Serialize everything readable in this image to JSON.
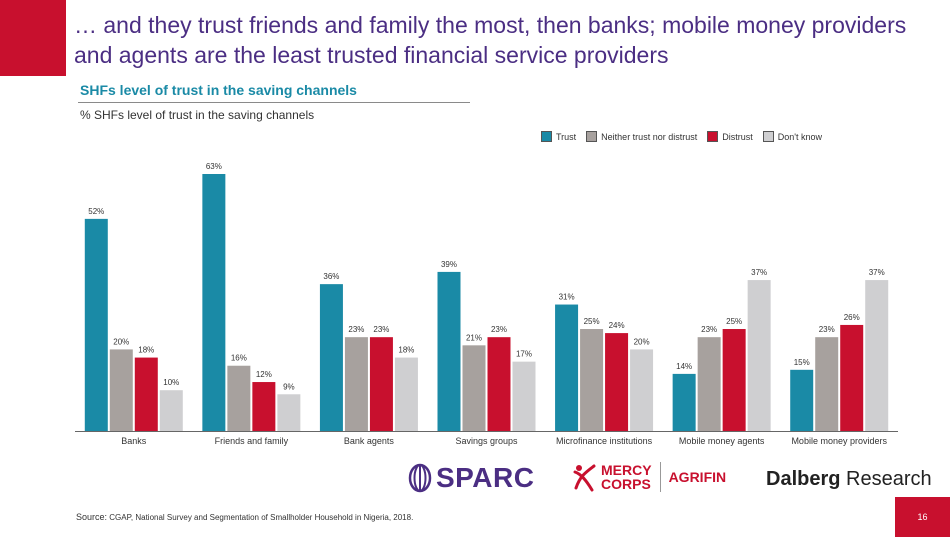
{
  "headline": "… and they trust friends and family the most, then banks; mobile money providers and agents are the least trusted financial service providers",
  "chart_header": {
    "title": "SHFs level of trust in the saving channels",
    "subtitle": "% SHFs level of trust in the saving channels"
  },
  "colors": {
    "brand_red": "#c8102e",
    "brand_purple": "#4b2e83",
    "accent_teal": "#1a8aa6"
  },
  "chart_data": {
    "type": "bar",
    "title": "SHFs level of trust in the saving channels",
    "ylabel": "% SHFs level of trust in the saving channels",
    "categories": [
      "Banks",
      "Friends and family",
      "Bank agents",
      "Savings groups",
      "Microfinance institutions",
      "Mobile money agents",
      "Mobile money providers"
    ],
    "series": [
      {
        "name": "Trust",
        "color": "#1a8aa6",
        "values": [
          52,
          63,
          36,
          39,
          31,
          14,
          15
        ]
      },
      {
        "name": "Neither trust nor distrust",
        "color": "#a7a19e",
        "values": [
          20,
          16,
          23,
          21,
          25,
          23,
          23
        ]
      },
      {
        "name": "Distrust",
        "color": "#c8102e",
        "values": [
          18,
          12,
          23,
          23,
          24,
          25,
          26
        ]
      },
      {
        "name": "Don't know",
        "color": "#cfcfd1",
        "values": [
          10,
          9,
          18,
          17,
          20,
          37,
          37
        ]
      }
    ],
    "value_suffix": "%",
    "ylim": [
      0,
      70
    ],
    "grid": false,
    "legend_position": "top-right"
  },
  "logos": {
    "sparc": "SPARC",
    "mercy_line1": "MERCY",
    "mercy_line2": "CORPS",
    "agrifin": "AGRIFIN",
    "dalberg_bold": "Dalberg",
    "dalberg_rest": " Research"
  },
  "source": {
    "label": "Source:",
    "text": "CGAP, National Survey and Segmentation of Smallholder Household in Nigeria, 2018."
  },
  "page_number": "16"
}
